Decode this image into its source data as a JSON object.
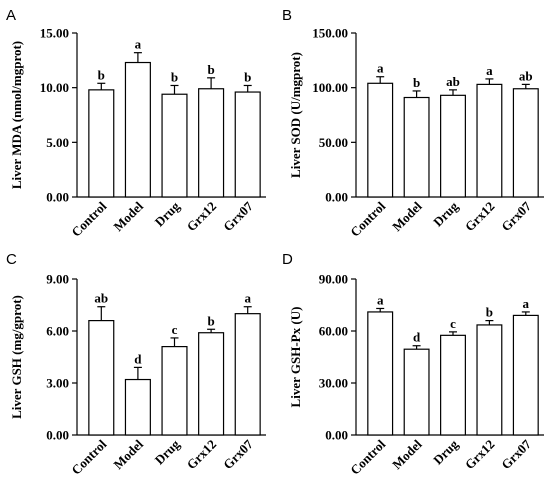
{
  "chart_data": [
    {
      "panel": "A",
      "type": "bar",
      "categories": [
        "Control",
        "Model",
        "Drug",
        "Grx12",
        "Grx07"
      ],
      "values": [
        9.8,
        12.3,
        9.4,
        9.9,
        9.6
      ],
      "errors": [
        0.6,
        0.9,
        0.8,
        1.0,
        0.6
      ],
      "labels": [
        "b",
        "a",
        "b",
        "b",
        "b"
      ],
      "ylabel": "Liver MDA (nmol/mgprot)",
      "ylim": [
        0,
        15
      ],
      "yticks": [
        0,
        5,
        10,
        15
      ],
      "ytick_labels": [
        "0.00",
        "5.00",
        "10.00",
        "15.00"
      ]
    },
    {
      "panel": "B",
      "type": "bar",
      "categories": [
        "Control",
        "Model",
        "Drug",
        "Grx12",
        "Grx07"
      ],
      "values": [
        104,
        91,
        93,
        103,
        99
      ],
      "errors": [
        6,
        6,
        5,
        5,
        4
      ],
      "labels": [
        "a",
        "b",
        "ab",
        "a",
        "ab"
      ],
      "ylabel": "Liver SOD (U/mgprot)",
      "ylim": [
        0,
        150
      ],
      "yticks": [
        0,
        50,
        100,
        150
      ],
      "ytick_labels": [
        "0.00",
        "50.00",
        "100.00",
        "150.00"
      ]
    },
    {
      "panel": "C",
      "type": "bar",
      "categories": [
        "Control",
        "Model",
        "Drug",
        "Grx12",
        "Grx07"
      ],
      "values": [
        6.6,
        3.2,
        5.1,
        5.9,
        7.0
      ],
      "errors": [
        0.8,
        0.7,
        0.5,
        0.2,
        0.4
      ],
      "labels": [
        "ab",
        "d",
        "c",
        "b",
        "a"
      ],
      "ylabel": "Liver GSH (mg/gprot)",
      "ylim": [
        0,
        9
      ],
      "yticks": [
        0,
        3,
        6,
        9
      ],
      "ytick_labels": [
        "0.00",
        "3.00",
        "6.00",
        "9.00"
      ]
    },
    {
      "panel": "D",
      "type": "bar",
      "categories": [
        "Control",
        "Model",
        "Drug",
        "Grx12",
        "Grx07"
      ],
      "values": [
        71,
        49.5,
        57.5,
        63.5,
        69
      ],
      "errors": [
        2.0,
        2.0,
        2.0,
        2.5,
        2.0
      ],
      "labels": [
        "a",
        "d",
        "c",
        "b",
        "a"
      ],
      "ylabel": "Liver GSH-Px (U)",
      "ylim": [
        0,
        90
      ],
      "yticks": [
        0,
        30,
        60,
        90
      ],
      "ytick_labels": [
        "0.00",
        "30.00",
        "60.00",
        "90.00"
      ]
    }
  ]
}
